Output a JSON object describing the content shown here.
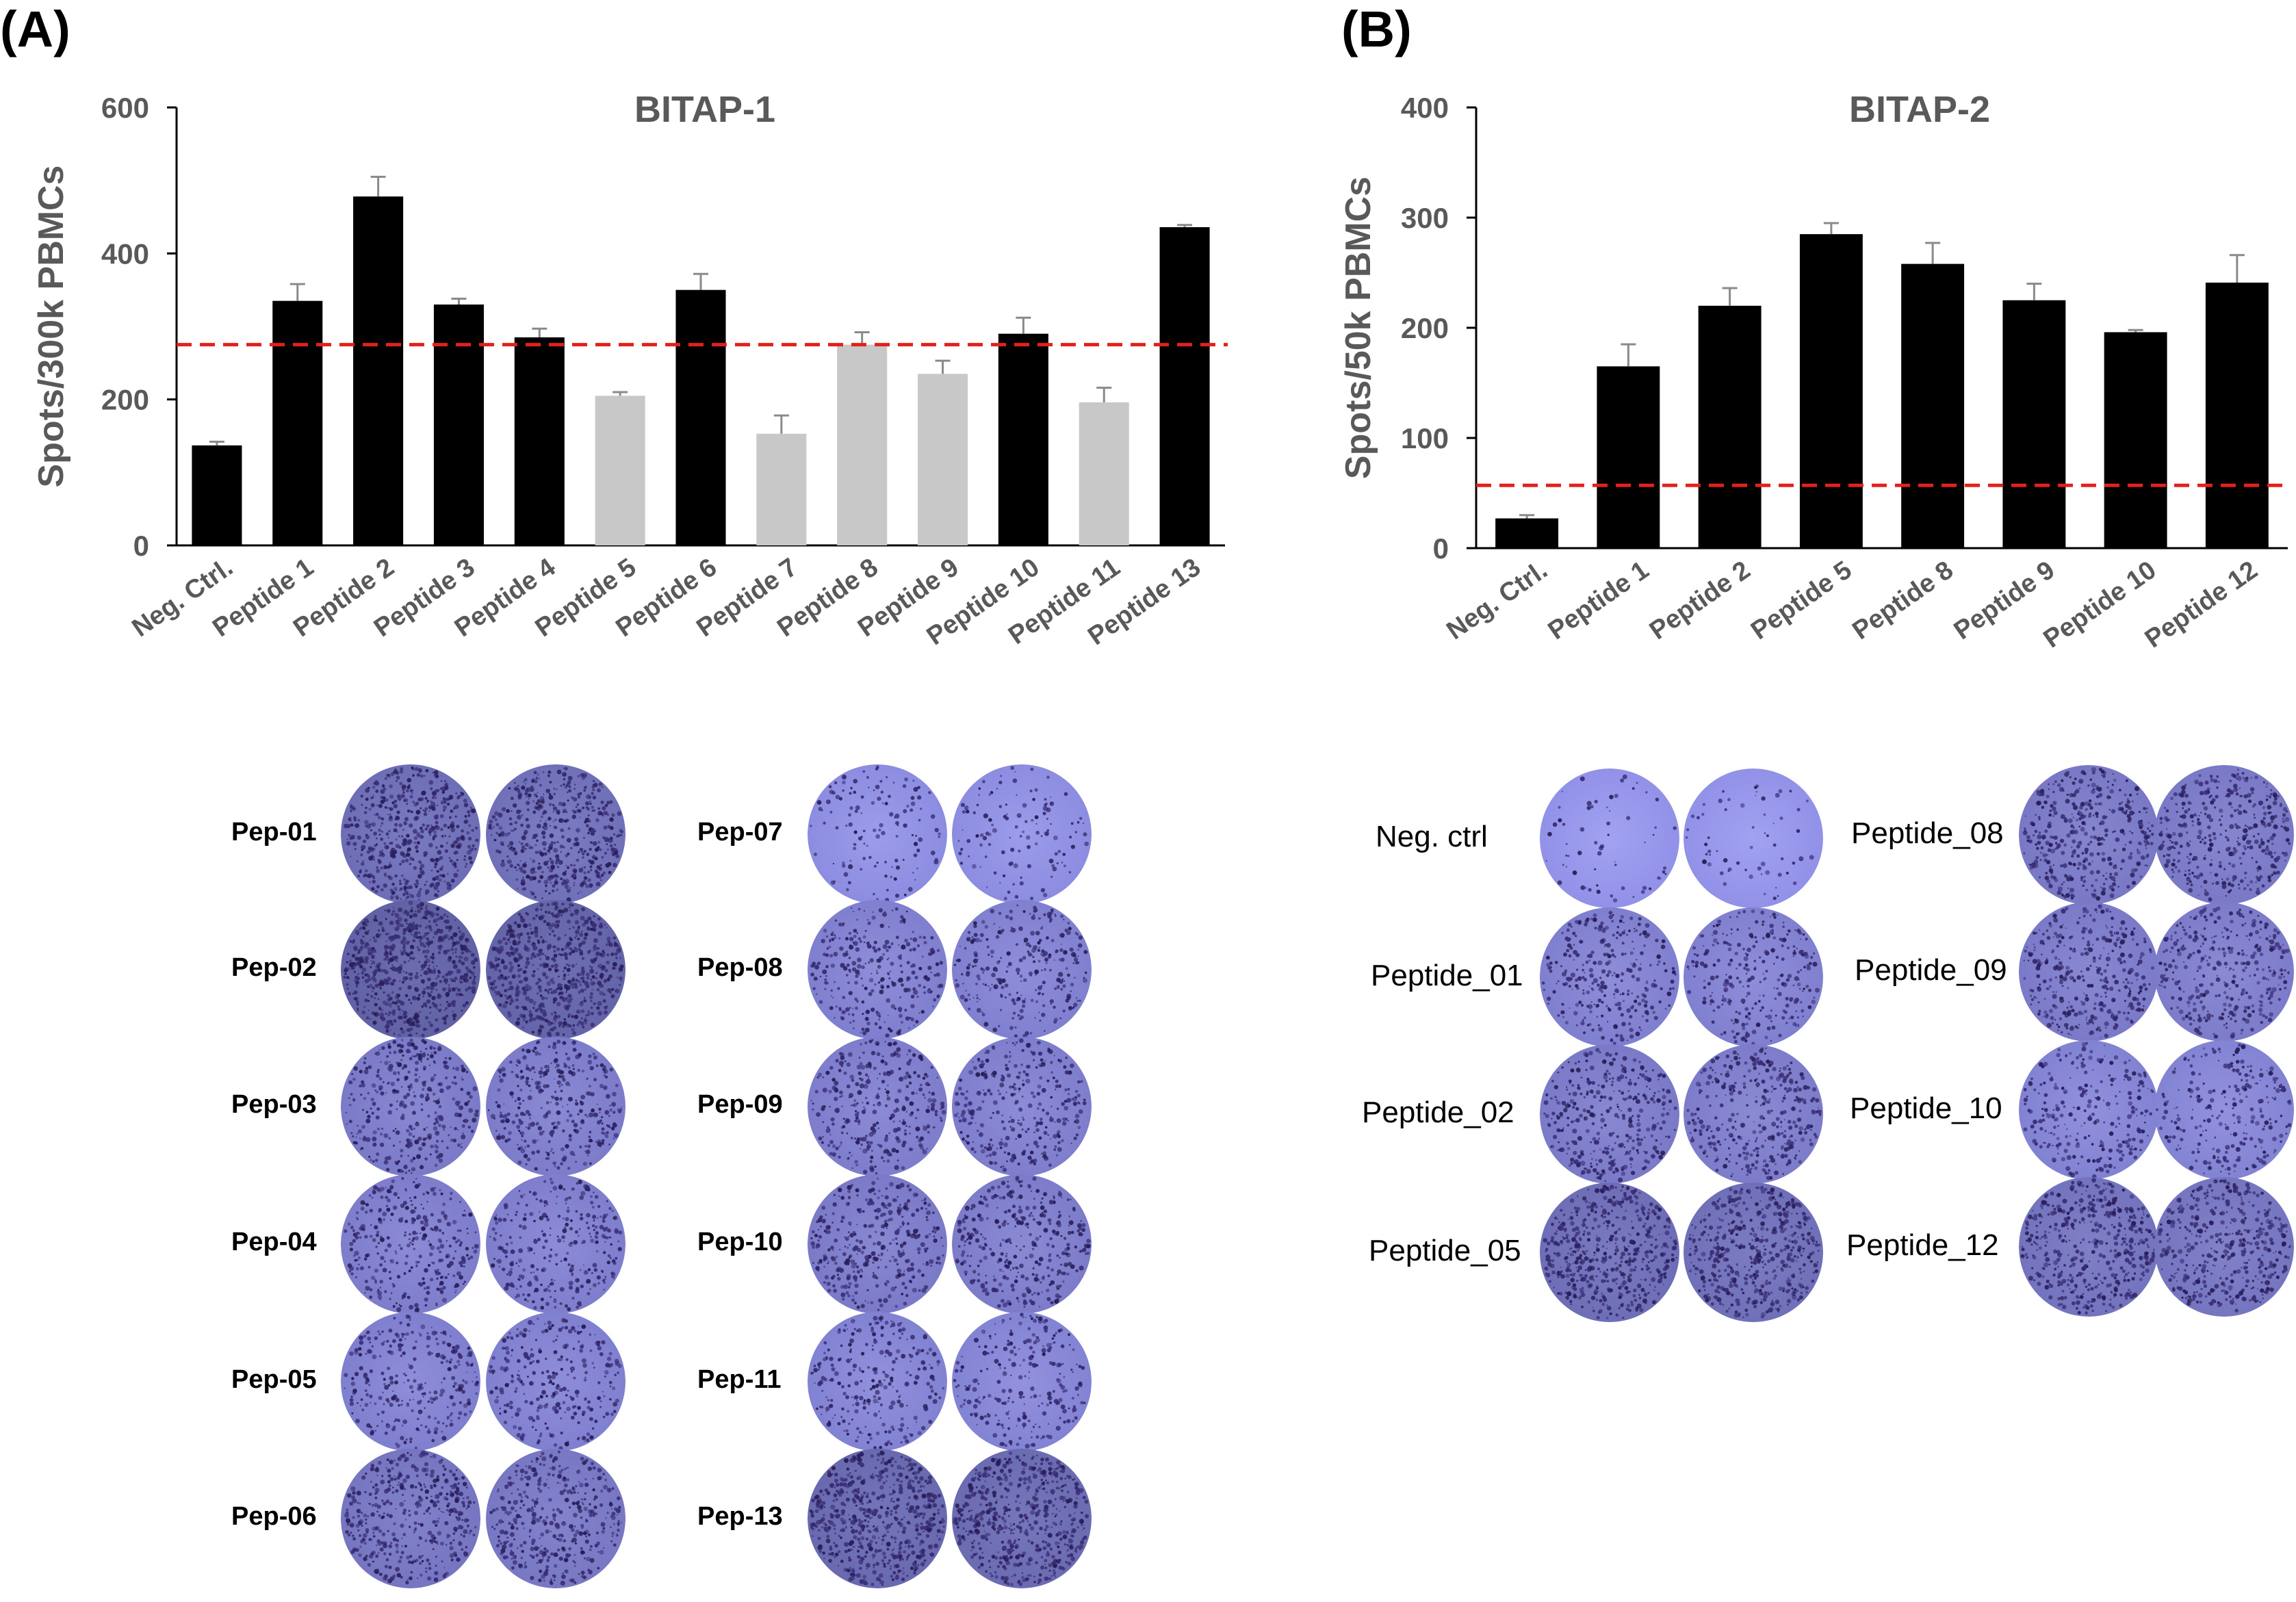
{
  "panels": {
    "A": {
      "label": "(A)"
    },
    "B": {
      "label": "(B)"
    }
  },
  "chart_data": [
    {
      "id": "A",
      "type": "bar",
      "title": "BITAP-1",
      "xlabel": "",
      "ylabel": "Spots/300k PBMCs",
      "ylim": [
        0,
        600
      ],
      "yticks": [
        0,
        200,
        400,
        600
      ],
      "grid": false,
      "threshold": 275,
      "threshold_color": "#e3201b",
      "colors": {
        "above": "#000000",
        "below": "#c8c8c8",
        "error": "#8a8a8a"
      },
      "categories": [
        "Neg. Ctrl.",
        "Peptide 1",
        "Peptide 2",
        "Peptide 3",
        "Peptide 4",
        "Peptide 5",
        "Peptide 6",
        "Peptide 7",
        "Peptide 8",
        "Peptide 9",
        "Peptide 10",
        "Peptide 11",
        "Peptide 13"
      ],
      "values": [
        137,
        335,
        478,
        330,
        285,
        205,
        350,
        153,
        275,
        235,
        290,
        196,
        436
      ],
      "errors": [
        5,
        23,
        27,
        8,
        12,
        5,
        22,
        25,
        17,
        18,
        22,
        20,
        3
      ],
      "bar_colors": [
        "above",
        "above",
        "above",
        "above",
        "above",
        "below",
        "above",
        "below",
        "below",
        "below",
        "above",
        "below",
        "above"
      ]
    },
    {
      "id": "B",
      "type": "bar",
      "title": "BITAP-2",
      "xlabel": "",
      "ylabel": "Spots/50k PBMCs",
      "ylim": [
        0,
        400
      ],
      "yticks": [
        0,
        100,
        200,
        300,
        400
      ],
      "grid": false,
      "threshold": 57,
      "threshold_color": "#e3201b",
      "colors": {
        "above": "#000000",
        "below": "#c8c8c8",
        "error": "#8a8a8a"
      },
      "categories": [
        "Neg. Ctrl.",
        "Peptide 1",
        "Peptide 2",
        "Peptide 5",
        "Peptide 8",
        "Peptide 9",
        "Peptide 10",
        "Peptide 12"
      ],
      "values": [
        27,
        165,
        220,
        285,
        258,
        225,
        196,
        241
      ],
      "errors": [
        3,
        20,
        16,
        10,
        19,
        15,
        2,
        25
      ],
      "bar_colors": [
        "above",
        "above",
        "above",
        "above",
        "above",
        "above",
        "above",
        "above"
      ]
    }
  ],
  "wells": {
    "A": {
      "left_column": [
        {
          "label": "Pep-01",
          "density": 0.75
        },
        {
          "label": "Pep-02",
          "density": 1.0
        },
        {
          "label": "Pep-03",
          "density": 0.5
        },
        {
          "label": "Pep-04",
          "density": 0.45
        },
        {
          "label": "Pep-05",
          "density": 0.4
        },
        {
          "label": "Pep-06",
          "density": 0.6
        }
      ],
      "right_column": [
        {
          "label": "Pep-07",
          "density": 0.15
        },
        {
          "label": "Pep-08",
          "density": 0.4
        },
        {
          "label": "Pep-09",
          "density": 0.45
        },
        {
          "label": "Pep-10",
          "density": 0.5
        },
        {
          "label": "Pep-11",
          "density": 0.35
        },
        {
          "label": "Pep-13",
          "density": 0.85
        }
      ]
    },
    "B": {
      "left_column": [
        {
          "label": "Neg. ctrl",
          "density": 0.05
        },
        {
          "label": "Peptide_01",
          "density": 0.4
        },
        {
          "label": "Peptide_02",
          "density": 0.5
        },
        {
          "label": "Peptide_05",
          "density": 0.75
        }
      ],
      "right_column": [
        {
          "label": "Peptide_08",
          "density": 0.55
        },
        {
          "label": "Peptide_09",
          "density": 0.5
        },
        {
          "label": "Peptide_10",
          "density": 0.35
        },
        {
          "label": "Peptide_12",
          "density": 0.65
        }
      ]
    }
  }
}
